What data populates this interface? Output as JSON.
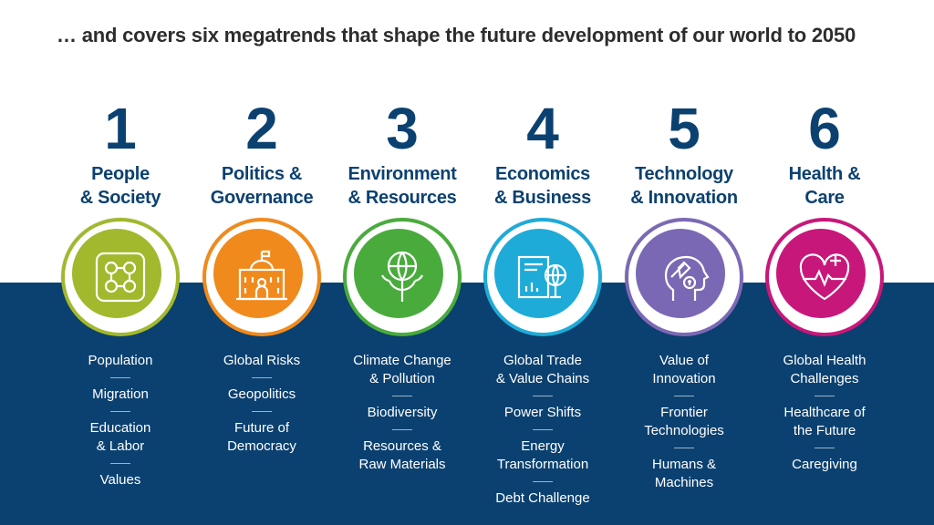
{
  "title": "… and covers six megatrends that shape the future development of our world to 2050",
  "columns": [
    {
      "number": "1",
      "name": "People\n& Society",
      "color": "#a2b82d",
      "icon": "people-network-icon",
      "items": [
        "Population",
        "Migration",
        "Education\n& Labor",
        "Values"
      ]
    },
    {
      "number": "2",
      "name": "Politics &\nGovernance",
      "color": "#f08a1c",
      "icon": "government-building-icon",
      "items": [
        "Global Risks",
        "Geopolitics",
        "Future of\nDemocracy"
      ]
    },
    {
      "number": "3",
      "name": "Environment\n& Resources",
      "color": "#4aab3d",
      "icon": "globe-tree-icon",
      "items": [
        "Climate Change\n& Pollution",
        "Biodiversity",
        "Resources &\nRaw Materials"
      ]
    },
    {
      "number": "4",
      "name": "Economics\n& Business",
      "color": "#1eabd8",
      "icon": "report-globe-icon",
      "items": [
        "Global Trade\n& Value Chains",
        "Power Shifts",
        "Energy\nTransformation",
        "Debt Challenge"
      ]
    },
    {
      "number": "5",
      "name": "Technology\n& Innovation",
      "color": "#7b68b5",
      "icon": "rocket-head-icon",
      "items": [
        "Value of\nInnovation",
        "Frontier\nTechnologies",
        "Humans &\nMachines"
      ]
    },
    {
      "number": "6",
      "name": "Health &\nCare",
      "color": "#c8177a",
      "icon": "heart-health-icon",
      "items": [
        "Global Health\nChallenges",
        "Healthcare of\nthe Future",
        "Caregiving"
      ]
    }
  ]
}
